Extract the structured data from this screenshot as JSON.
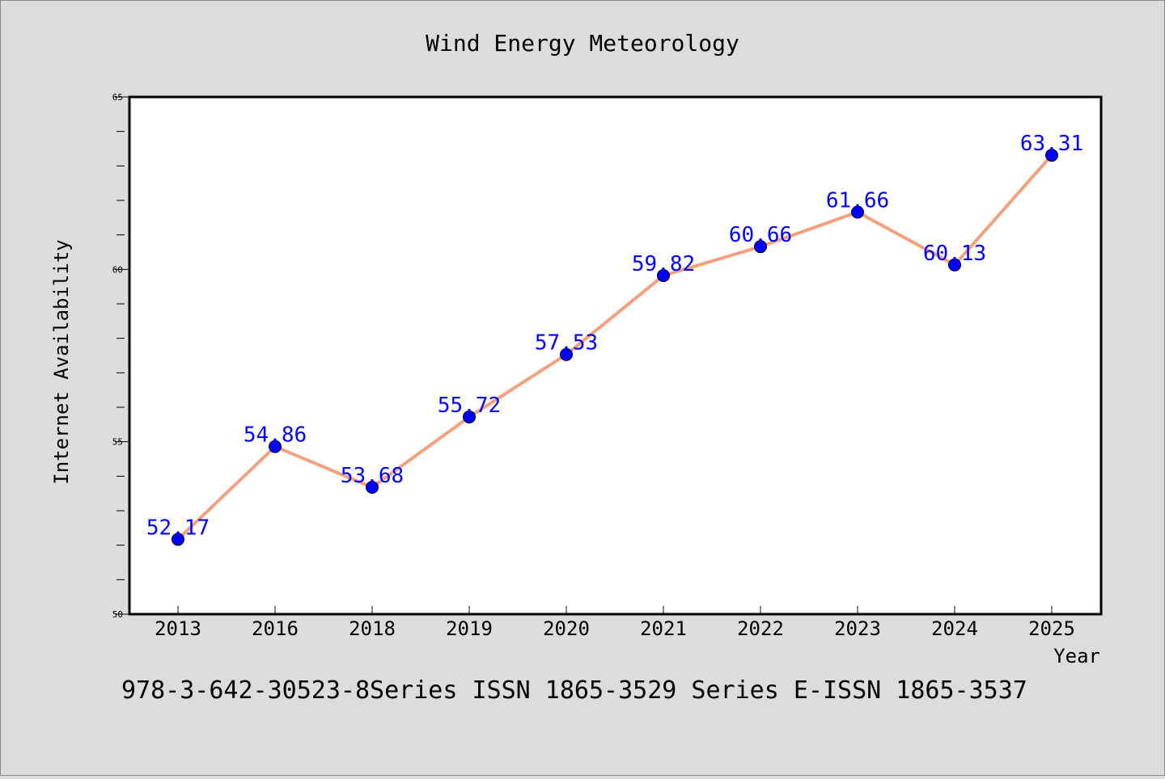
{
  "chart_data": {
    "type": "line",
    "title": "Wind Energy Meteorology",
    "xlabel": "Year",
    "ylabel": "Internet Availability",
    "categories": [
      "2013",
      "2016",
      "2018",
      "2019",
      "2020",
      "2021",
      "2022",
      "2023",
      "2024",
      "2025"
    ],
    "series": [
      {
        "values": [
          52.17,
          54.86,
          53.68,
          55.72,
          57.53,
          59.82,
          60.66,
          61.66,
          60.13,
          63.31
        ],
        "data_labels": [
          "52.17",
          "54.86",
          "53.68",
          "55.72",
          "57.53",
          "59.82",
          "60.66",
          "61.66",
          "60.13",
          "63.31"
        ],
        "line_color": "#f4a07e",
        "marker_color": "#0000ff"
      }
    ],
    "ylim": [
      50,
      65
    ],
    "yticks": [
      "50",
      "55",
      "60",
      "65"
    ],
    "grid": false,
    "legend": "none"
  },
  "footer": "978-3-642-30523-8Series ISSN 1865-3529 Series E-ISSN 1865-3537",
  "colors": {
    "background": "#dcdcdc",
    "plot_background": "#ffffff",
    "data_label": "#0000ff"
  }
}
